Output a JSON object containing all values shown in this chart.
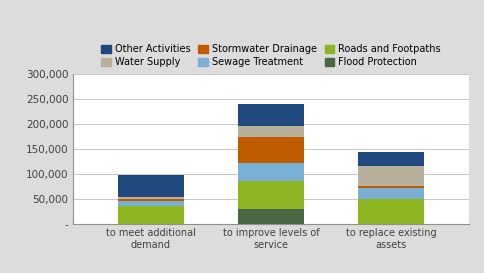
{
  "categories": [
    "to meet additional\ndemand",
    "to improve levels of\nservice",
    "to replace existing\nassets"
  ],
  "series": [
    {
      "label": "Flood Protection",
      "color": "#4a6741",
      "values": [
        0,
        30000,
        0
      ]
    },
    {
      "label": "Roads and Footpaths",
      "color": "#8db521",
      "values": [
        35000,
        55000,
        50000
      ]
    },
    {
      "label": "Sewage Treatment",
      "color": "#7aafd4",
      "values": [
        10000,
        37000,
        22000
      ]
    },
    {
      "label": "Stormwater Drainage",
      "color": "#bf5a00",
      "values": [
        5000,
        52000,
        4000
      ]
    },
    {
      "label": "Water Supply",
      "color": "#b8b09a",
      "values": [
        3000,
        21000,
        40000
      ]
    },
    {
      "label": "Other Activities",
      "color": "#1f497d",
      "values": [
        44000,
        45000,
        28000
      ]
    }
  ],
  "ylim": [
    0,
    300000
  ],
  "yticks": [
    0,
    50000,
    100000,
    150000,
    200000,
    250000,
    300000
  ],
  "ytick_labels": [
    "-",
    "50,000",
    "100,000",
    "150,000",
    "200,000",
    "250,000",
    "300,000"
  ],
  "legend_row1": [
    "Other Activities",
    "Water Supply",
    "Stormwater Drainage"
  ],
  "legend_row2": [
    "Sewage Treatment",
    "Roads and Footpaths",
    "Flood Protection"
  ],
  "legend_colors": {
    "Other Activities": "#1f497d",
    "Water Supply": "#b8b09a",
    "Stormwater Drainage": "#bf5a00",
    "Sewage Treatment": "#7aafd4",
    "Roads and Footpaths": "#8db521",
    "Flood Protection": "#4a6741"
  },
  "background_color": "#dcdcdc",
  "plot_background": "#ffffff",
  "bar_width": 0.55,
  "figsize": [
    4.84,
    2.73
  ],
  "dpi": 100
}
